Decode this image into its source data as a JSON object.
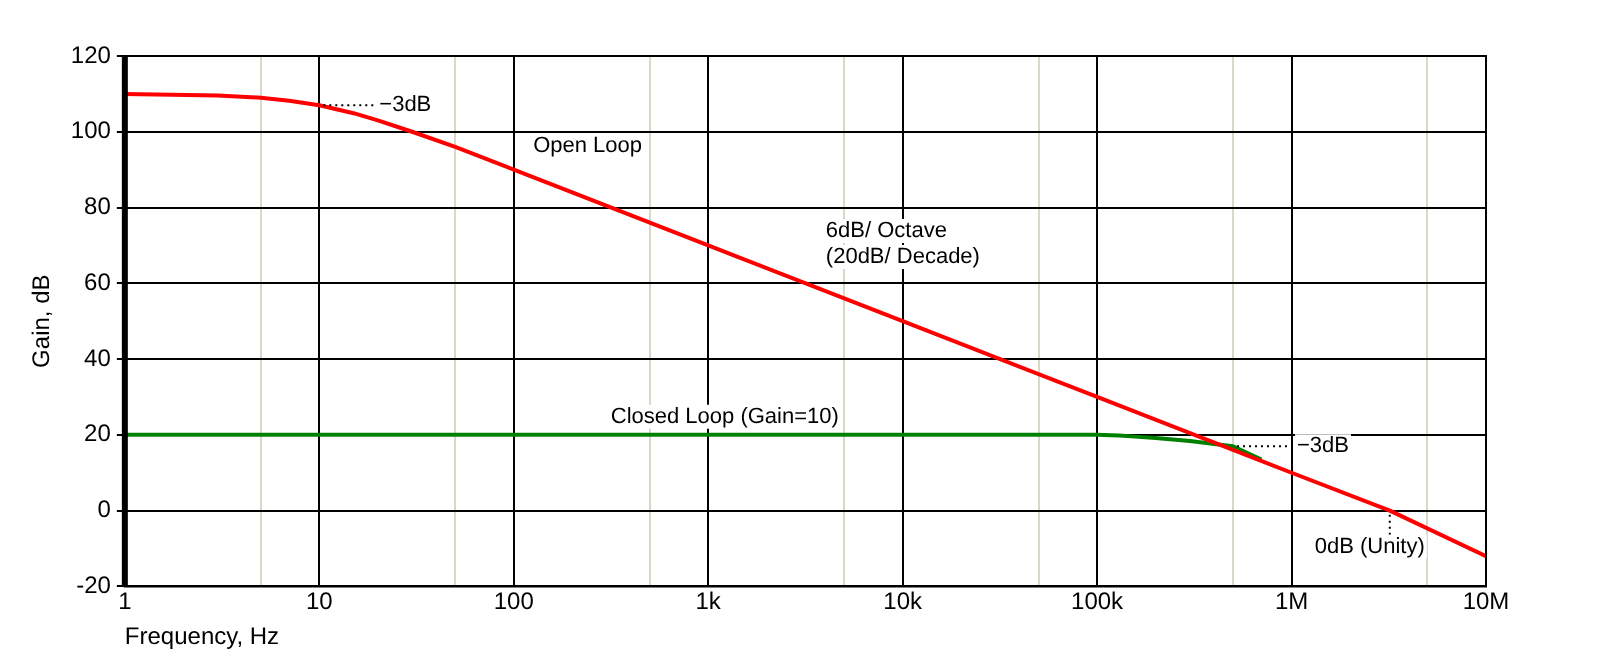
{
  "chart_data": {
    "type": "line",
    "xlabel": "Frequency, Hz",
    "ylabel": "Gain, dB",
    "log": "x",
    "xlim": [
      1,
      10000000
    ],
    "ylim": [
      -20,
      120
    ],
    "xticks": [
      {
        "value": 1,
        "label": "1"
      },
      {
        "value": 5,
        "label": null
      },
      {
        "value": 10,
        "label": "10"
      },
      {
        "value": 50,
        "label": null
      },
      {
        "value": 100,
        "label": "100"
      },
      {
        "value": 500,
        "label": null
      },
      {
        "value": 1000,
        "label": "1k"
      },
      {
        "value": 5000,
        "label": null
      },
      {
        "value": 10000,
        "label": "10k"
      },
      {
        "value": 50000,
        "label": null
      },
      {
        "value": 100000,
        "label": "100k"
      },
      {
        "value": 500000,
        "label": null
      },
      {
        "value": 1000000,
        "label": "1M"
      },
      {
        "value": 5000000,
        "label": null
      },
      {
        "value": 10000000,
        "label": "10M"
      }
    ],
    "yticks": [
      -20,
      0,
      20,
      40,
      60,
      80,
      100,
      120
    ],
    "grid": true,
    "legend": false,
    "marker": "none",
    "line_style": "solid",
    "series": [
      {
        "name": "Open Loop",
        "color": "#ff0000",
        "x": [
          1,
          3,
          5,
          7,
          10,
          15,
          20,
          30,
          50,
          100,
          1000,
          10000,
          100000,
          1000000,
          3200000,
          10000000
        ],
        "values": [
          110,
          109.6,
          109,
          108.2,
          107,
          104.9,
          103,
          100,
          96,
          90,
          70,
          50,
          30,
          10,
          0,
          -12
        ]
      },
      {
        "name": "Closed Loop (Gain=10)",
        "color": "#008000",
        "x": [
          1,
          100000,
          130000,
          150000,
          200000,
          300000,
          500000,
          700000
        ],
        "values": [
          20,
          20,
          19.8,
          19.6,
          19.2,
          18.4,
          17,
          13.5
        ]
      }
    ],
    "annotations": [
      {
        "text": "−3dB",
        "x": 10,
        "y": 107
      },
      "6dB/ Octave\n(20dB/ Decade)",
      {
        "text": "−3dB",
        "x": 500000,
        "y": 17
      },
      {
        "text": "0dB (Unity)",
        "x": 3200000,
        "y": 0
      }
    ]
  }
}
